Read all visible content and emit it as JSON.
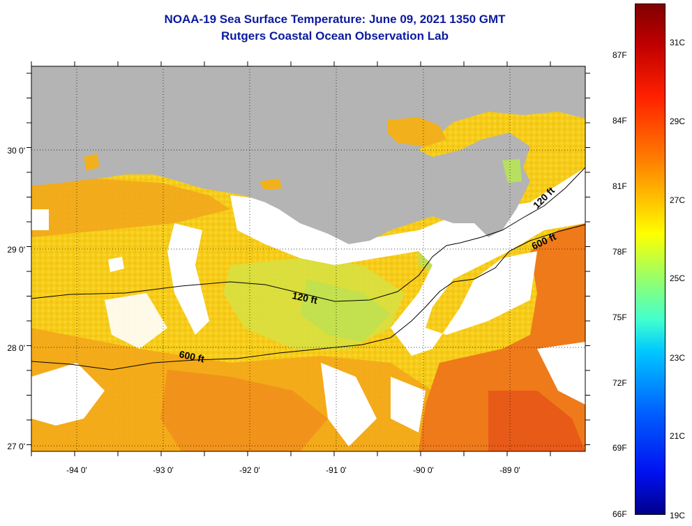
{
  "title": "NOAA-19 Sea Surface Temperature:  June 09, 2021 1350 GMT",
  "subtitle": "Rutgers Coastal Ocean Observation Lab",
  "map": {
    "x_ticks": [
      "-94 0'",
      "-93 0'",
      "-92 0'",
      "-91 0'",
      "-90 0'",
      "-89 0'"
    ],
    "y_ticks": [
      "30 0'",
      "29 0'",
      "28 0'",
      "27 0'"
    ],
    "contours": [
      {
        "label": "120 ft"
      },
      {
        "label": "600 ft"
      },
      {
        "label": "120 ft"
      },
      {
        "label": "600 ft"
      }
    ],
    "colors": {
      "land": "#b4b4b4",
      "cloud": "#ffffff",
      "warm": "#f07818",
      "mid": "#f8d400",
      "cool": "#c8e83c"
    }
  },
  "colorbar": {
    "fahrenheit": [
      "87F",
      "84F",
      "81F",
      "78F",
      "75F",
      "72F",
      "69F",
      "66F"
    ],
    "celsius": [
      "31C",
      "29C",
      "27C",
      "25C",
      "23C",
      "21C",
      "19C"
    ]
  }
}
